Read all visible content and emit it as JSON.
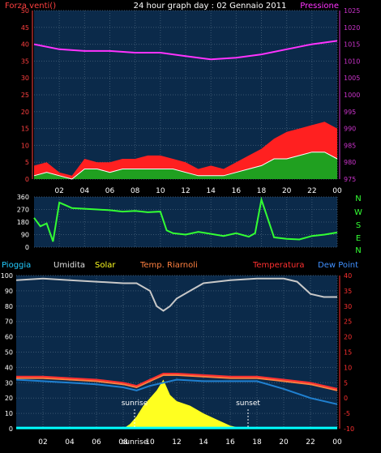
{
  "header": {
    "title": "24 hour graph day : 02 Gennaio 2011",
    "left_label": "Forza venti()",
    "right_label": "Pressione"
  },
  "wind_dir_labels": [
    "N",
    "W",
    "S",
    "E",
    "N"
  ],
  "bottom_legend": {
    "rain": "Pioggia",
    "humidity": "Umidita",
    "solar": "Solar",
    "temp_riarnoli": "Temp. Riarnoli",
    "temperature": "Temperatura",
    "dew_point": "Dew Point"
  },
  "time_ticks": [
    "02",
    "04",
    "06",
    "08",
    "10",
    "12",
    "14",
    "16",
    "18",
    "20",
    "22",
    "00"
  ],
  "markers": {
    "sunrise": "sunrise",
    "sunset": "sunset"
  },
  "colors": {
    "plot_bg": "#0b2a4a",
    "pressure": "#ff33ff",
    "wind_max": "#ff2020",
    "wind_avg": "#20a020",
    "wind_dir": "#33ff33",
    "humidity": "#c8c8c8",
    "solar": "#ffff20",
    "temperature": "#ff3030",
    "temp_riarnoli": "#ff8040",
    "dew_point": "#2080d0",
    "rain": "#00ffff",
    "left_axis": "#ff4040",
    "right_axis_pressure": "#cc33cc",
    "right_axis_temp": "#ff3030"
  },
  "chart_data": [
    {
      "type": "line",
      "title": "24 hour graph day : 02 Gennaio 2011",
      "series": [
        {
          "name": "Forza venti()",
          "axis": "left",
          "ylim": [
            0,
            50
          ],
          "x": [
            0,
            1,
            2,
            3,
            4,
            5,
            6,
            7,
            8,
            9,
            10,
            11,
            12,
            13,
            14,
            15,
            16,
            17,
            18,
            19,
            20,
            21,
            22,
            23,
            24
          ],
          "values": [
            4,
            5,
            2,
            1,
            6,
            5,
            5,
            6,
            6,
            7,
            7,
            6,
            5,
            3,
            4,
            3,
            5,
            7,
            9,
            12,
            14,
            15,
            16,
            17,
            15
          ]
        },
        {
          "name": "avg",
          "axis": "left",
          "ylim": [
            0,
            50
          ],
          "x": [
            0,
            1,
            2,
            3,
            4,
            5,
            6,
            7,
            8,
            9,
            10,
            11,
            12,
            13,
            14,
            15,
            16,
            17,
            18,
            19,
            20,
            21,
            22,
            23,
            24
          ],
          "values": [
            1,
            2,
            1,
            0,
            3,
            3,
            2,
            3,
            3,
            3,
            3,
            3,
            2,
            1,
            1,
            1,
            2,
            3,
            4,
            6,
            6,
            7,
            8,
            8,
            6
          ]
        },
        {
          "name": "Pressione",
          "axis": "right",
          "ylim": [
            975,
            1025
          ],
          "x": [
            0,
            2,
            4,
            6,
            8,
            10,
            12,
            14,
            16,
            18,
            20,
            22,
            24
          ],
          "values": [
            1015,
            1013.5,
            1013,
            1013,
            1012.5,
            1012.5,
            1011.5,
            1010.5,
            1011,
            1012,
            1013.5,
            1015,
            1016
          ]
        }
      ],
      "left_ticks": [
        0,
        5,
        10,
        15,
        20,
        25,
        30,
        35,
        40,
        45,
        50
      ],
      "right_ticks": [
        975,
        980,
        985,
        990,
        995,
        1000,
        1005,
        1010,
        1015,
        1020,
        1025
      ]
    },
    {
      "type": "line",
      "series": [
        {
          "name": "wind direction",
          "ylim": [
            0,
            360
          ],
          "x": [
            0,
            0.5,
            1,
            1.5,
            2,
            2.5,
            3,
            4,
            5,
            6,
            7,
            8,
            9,
            10,
            10.5,
            11,
            12,
            13,
            14,
            15,
            16,
            17,
            17.5,
            18,
            19,
            20,
            21,
            22,
            23,
            24
          ],
          "values": [
            210,
            150,
            170,
            40,
            320,
            300,
            280,
            275,
            270,
            265,
            255,
            260,
            250,
            255,
            120,
            100,
            90,
            110,
            95,
            80,
            100,
            75,
            100,
            340,
            70,
            60,
            55,
            80,
            90,
            105
          ]
        }
      ],
      "left_ticks": [
        0,
        90,
        180,
        270,
        360
      ]
    },
    {
      "type": "line",
      "series": [
        {
          "name": "Umidita",
          "axis": "left",
          "ylim": [
            0,
            100
          ],
          "x": [
            0,
            2,
            4,
            6,
            8,
            9,
            10,
            10.5,
            11,
            11.5,
            12,
            13,
            14,
            15,
            16,
            18,
            20,
            21,
            22,
            23,
            24
          ],
          "values": [
            97,
            98,
            97,
            96,
            95,
            95,
            90,
            80,
            77,
            80,
            85,
            90,
            95,
            96,
            97,
            98,
            98,
            96,
            88,
            86,
            86
          ]
        },
        {
          "name": "Temperatura",
          "axis": "right",
          "ylim": [
            -10,
            40
          ],
          "x": [
            0,
            2,
            4,
            6,
            8,
            9,
            10,
            11,
            12,
            14,
            16,
            18,
            20,
            22,
            24
          ],
          "values": [
            7,
            7,
            6.5,
            6,
            5,
            4,
            6,
            8,
            8,
            7.5,
            7,
            7,
            6,
            5,
            3
          ]
        },
        {
          "name": "Temp. Riarnoli",
          "axis": "right",
          "ylim": [
            -10,
            40
          ],
          "x": [
            0,
            2,
            4,
            6,
            8,
            9,
            10,
            11,
            12,
            14,
            16,
            18,
            20,
            22,
            24
          ],
          "values": [
            6.5,
            6.5,
            6,
            5.5,
            4.5,
            3.5,
            5.5,
            7.5,
            7.5,
            7,
            6.5,
            6.5,
            5.5,
            4.5,
            2.5
          ]
        },
        {
          "name": "Dew Point",
          "axis": "right",
          "ylim": [
            -10,
            40
          ],
          "x": [
            0,
            2,
            4,
            6,
            8,
            9,
            10,
            11,
            12,
            14,
            16,
            18,
            20,
            22,
            24
          ],
          "values": [
            6,
            5.5,
            5,
            4.5,
            3.5,
            2.5,
            4,
            5,
            6,
            5.5,
            5.5,
            5.5,
            3,
            0,
            -2
          ]
        },
        {
          "name": "Solar",
          "axis": "left",
          "ylim": [
            0,
            100
          ],
          "x": [
            8,
            8.5,
            9,
            9.5,
            10,
            10.5,
            11,
            11.5,
            12,
            13,
            14,
            15,
            16,
            17
          ],
          "values": [
            0,
            3,
            8,
            15,
            20,
            25,
            32,
            22,
            18,
            15,
            10,
            6,
            2,
            0
          ]
        },
        {
          "name": "Pioggia",
          "axis": "left",
          "ylim": [
            0,
            100
          ],
          "x": [
            0,
            24
          ],
          "values": [
            0.5,
            0.5
          ]
        }
      ],
      "left_ticks": [
        0,
        10,
        20,
        30,
        40,
        50,
        60,
        70,
        80,
        90,
        100
      ],
      "right_ticks": [
        -10,
        -5,
        0,
        5,
        10,
        15,
        20,
        25,
        30,
        35,
        40
      ]
    }
  ]
}
